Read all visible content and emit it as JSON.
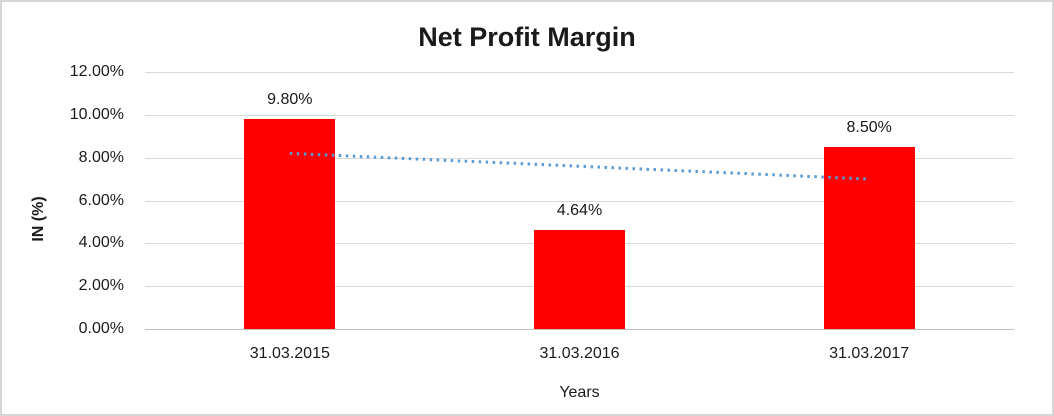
{
  "chart_data": {
    "type": "bar",
    "title": "Net Profit Margin",
    "categories": [
      "31.03.2015",
      "31.03.2016",
      "31.03.2017"
    ],
    "values": [
      9.8,
      4.64,
      8.5
    ],
    "data_labels": [
      "9.80%",
      "4.64%",
      "8.50%"
    ],
    "xlabel": "Years",
    "ylabel": "IN (%)",
    "ylim": [
      0,
      12
    ],
    "ytick_labels": [
      "0.00%",
      "2.00%",
      "4.00%",
      "6.00%",
      "8.00%",
      "10.00%",
      "12.00%"
    ],
    "grid": true,
    "legend": "none",
    "bar_color": "#FF0000",
    "trendline": {
      "type": "linear",
      "style": "dotted",
      "color": "#5B9BD5",
      "start_value": 8.2,
      "end_value": 7.0
    }
  },
  "colors": {
    "bar": "#FF0000",
    "trendline": "#5B9BD5",
    "gridline": "#D9D9D9",
    "axis_line": "#C0C0C0",
    "border": "#D6D6D6",
    "text": "#1A1A1A",
    "background": "#FFFFFF"
  }
}
